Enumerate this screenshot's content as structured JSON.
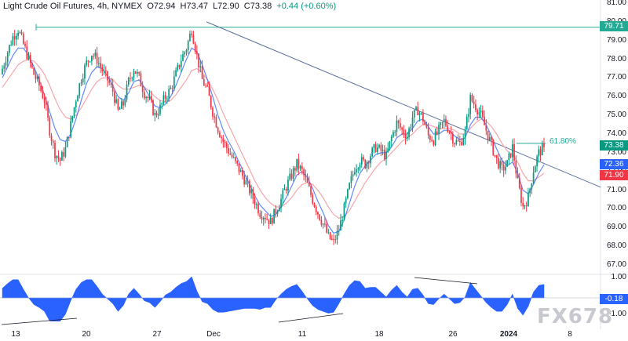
{
  "header": {
    "instrument": "Light Crude Oil Futures, 4h, NYMEX",
    "open": "O72.94",
    "high": "H73.47",
    "low": "L72.90",
    "close": "C73.38",
    "change": "+0.44 (+0.60%)"
  },
  "price_axis": [
    "81.00",
    "80.00",
    "79.00",
    "78.00",
    "77.00",
    "76.00",
    "75.00",
    "74.00",
    "73.00",
    "72.00",
    "71.00",
    "70.00",
    "69.00",
    "68.00",
    "67.00"
  ],
  "price_badges": {
    "level_high": {
      "text": "79.71",
      "color": "#22ab94"
    },
    "last": {
      "text": "73.38",
      "color": "#089981"
    },
    "ma_fast": {
      "text": "72.36",
      "color": "#2962ff"
    },
    "ma_slow": {
      "text": "71.90",
      "color": "#f23645"
    }
  },
  "oscillator_axis": {
    "top": "1.00",
    "bottom": "-1.00",
    "current": "-0.18"
  },
  "date_axis": [
    "13",
    "20",
    "27",
    "Dec",
    "11",
    "18",
    "26",
    "2024",
    "8"
  ],
  "fib_label": "61.80%",
  "watermark": "FX678",
  "colors": {
    "up": "#089981",
    "down": "#f23645",
    "ma_fast": "#2962ff",
    "ma_slow": "#f7a6a9",
    "trendline": "#5b6f9c",
    "level": "#22ab94",
    "oscillator": "#2962ff"
  },
  "chart_data": {
    "type": "candlestick",
    "title": "Light Crude Oil Futures, 4h, NYMEX",
    "ylim": [
      67,
      81
    ],
    "x_ticks": [
      "13",
      "20",
      "27",
      "Dec",
      "11",
      "18",
      "26",
      "2024",
      "8"
    ],
    "price_path": [
      77.5,
      78.4,
      79.2,
      79.6,
      78.8,
      78.0,
      77.2,
      76.6,
      75.8,
      74.2,
      73.0,
      72.6,
      73.2,
      74.5,
      75.9,
      77.0,
      77.8,
      78.3,
      78.0,
      77.4,
      76.9,
      76.3,
      75.2,
      75.6,
      76.8,
      77.5,
      77.0,
      76.2,
      75.8,
      75.0,
      75.4,
      76.0,
      76.4,
      77.2,
      78.0,
      78.6,
      79.6,
      78.2,
      76.9,
      76.3,
      75.2,
      74.3,
      73.6,
      73.1,
      72.6,
      72.1,
      71.6,
      71.0,
      70.4,
      69.8,
      69.6,
      69.3,
      69.9,
      70.5,
      71.2,
      71.8,
      72.4,
      72.0,
      71.3,
      70.5,
      69.8,
      69.2,
      68.5,
      68.2,
      68.9,
      70.0,
      71.2,
      72.2,
      72.6,
      72.4,
      72.9,
      73.3,
      73.1,
      72.8,
      73.8,
      74.6,
      74.2,
      73.9,
      74.9,
      75.3,
      74.8,
      73.9,
      73.7,
      74.2,
      74.7,
      74.2,
      73.6,
      73.5,
      74.1,
      75.9,
      75.5,
      75.0,
      74.2,
      73.4,
      72.6,
      72.1,
      72.4,
      73.3,
      71.4,
      70.1,
      70.6,
      72.1,
      73.0,
      73.3
    ],
    "ma_fast_path": [
      77.0,
      77.6,
      78.2,
      78.6,
      78.6,
      78.2,
      77.6,
      76.9,
      76.1,
      75.2,
      74.3,
      73.7,
      73.6,
      74.0,
      74.8,
      75.8,
      76.7,
      77.3,
      77.6,
      77.5,
      77.1,
      76.6,
      76.0,
      75.8,
      76.2,
      76.8,
      76.9,
      76.5,
      76.0,
      75.5,
      75.4,
      75.6,
      76.0,
      76.6,
      77.3,
      78.0,
      78.6,
      78.4,
      77.7,
      76.9,
      76.0,
      75.0,
      74.2,
      73.6,
      73.1,
      72.5,
      71.9,
      71.3,
      70.7,
      70.2,
      69.9,
      69.6,
      69.7,
      70.1,
      70.6,
      71.2,
      71.8,
      72.0,
      71.7,
      71.1,
      70.4,
      69.8,
      69.1,
      68.7,
      68.8,
      69.4,
      70.3,
      71.2,
      71.9,
      72.3,
      72.6,
      72.9,
      73.0,
      73.0,
      73.3,
      73.8,
      74.0,
      74.0,
      74.3,
      74.7,
      74.8,
      74.4,
      74.0,
      74.0,
      74.2,
      74.2,
      73.9,
      73.7,
      73.8,
      74.5,
      74.9,
      74.9,
      74.5,
      73.9,
      73.2,
      72.6,
      72.3,
      72.5,
      71.9,
      71.0,
      70.8,
      71.3,
      71.9,
      72.36
    ],
    "ma_slow_path": [
      76.5,
      76.9,
      77.3,
      77.7,
      77.9,
      78.0,
      77.9,
      77.6,
      77.2,
      76.6,
      75.9,
      75.3,
      74.9,
      74.8,
      75.0,
      75.4,
      75.9,
      76.4,
      76.8,
      77.0,
      77.0,
      76.9,
      76.6,
      76.4,
      76.4,
      76.5,
      76.6,
      76.5,
      76.3,
      76.0,
      75.8,
      75.7,
      75.8,
      76.1,
      76.5,
      76.9,
      77.4,
      77.5,
      77.3,
      76.9,
      76.4,
      75.8,
      75.1,
      74.5,
      73.9,
      73.3,
      72.7,
      72.1,
      71.5,
      71.0,
      70.6,
      70.3,
      70.1,
      70.1,
      70.3,
      70.6,
      71.0,
      71.3,
      71.4,
      71.3,
      71.0,
      70.6,
      70.1,
      69.7,
      69.5,
      69.6,
      69.9,
      70.4,
      70.9,
      71.4,
      71.8,
      72.2,
      72.5,
      72.7,
      73.0,
      73.3,
      73.6,
      73.8,
      74.0,
      74.3,
      74.5,
      74.5,
      74.4,
      74.3,
      74.3,
      74.3,
      74.2,
      74.0,
      74.0,
      74.3,
      74.6,
      74.8,
      74.7,
      74.4,
      74.0,
      73.5,
      73.1,
      72.9,
      72.5,
      71.9,
      71.5,
      71.5,
      71.7,
      71.9
    ],
    "oscillator": {
      "ylim": [
        -1.2,
        1.2
      ],
      "last": -0.18
    },
    "levels": [
      {
        "value": 79.71,
        "label": "79.71"
      }
    ],
    "fib": {
      "label": "61.80%",
      "value": 73.5
    },
    "trendline": {
      "from_value": 80.0,
      "to_value": 72.0
    }
  }
}
